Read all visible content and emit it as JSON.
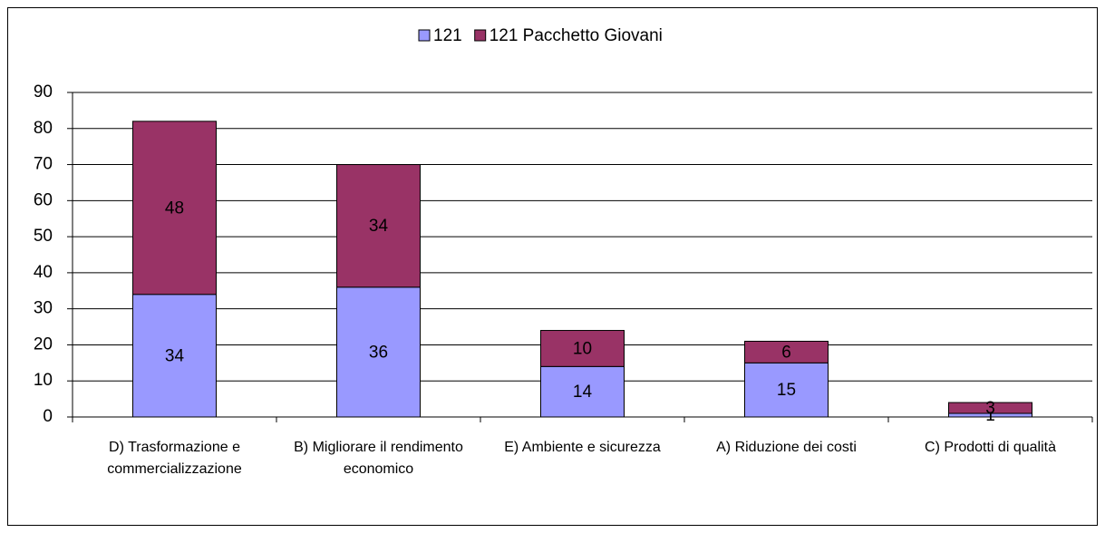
{
  "chart_data": {
    "type": "bar",
    "stacked": true,
    "categories": [
      "D) Trasformazione e commercializzazione",
      "B) Migliorare il rendimento economico",
      "E) Ambiente e sicurezza",
      "A) Riduzione dei costi",
      "C) Prodotti di qualità"
    ],
    "series": [
      {
        "name": "121",
        "color": "#9999ff",
        "values": [
          34,
          36,
          14,
          15,
          1
        ]
      },
      {
        "name": "121 Pacchetto Giovani",
        "color": "#993366",
        "values": [
          48,
          34,
          10,
          6,
          3
        ]
      }
    ],
    "ylim": [
      0,
      90
    ],
    "yticks": [
      0,
      10,
      20,
      30,
      40,
      50,
      60,
      70,
      80,
      90
    ],
    "grid": true,
    "legend": "top"
  }
}
